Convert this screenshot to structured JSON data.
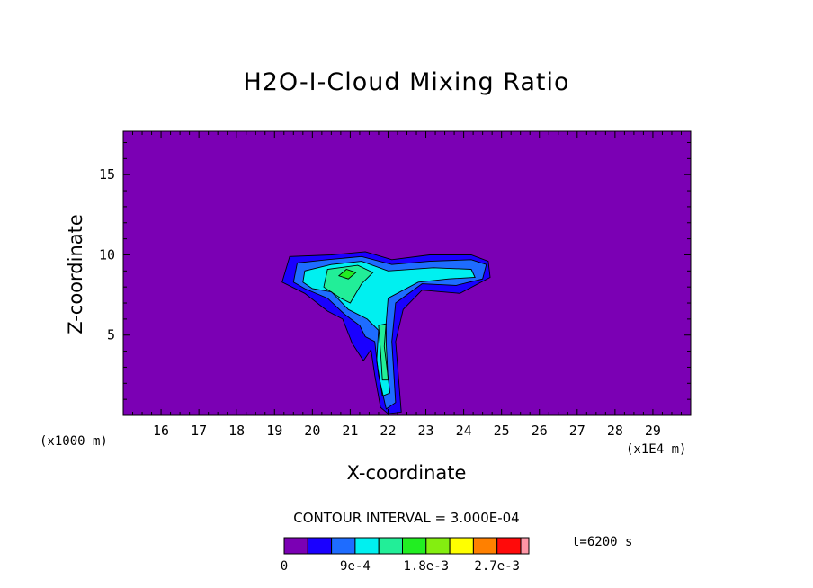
{
  "chart_data": {
    "type": "heatmap",
    "title": "H2O-I-Cloud Mixing Ratio",
    "xlabel": "X-coordinate",
    "ylabel": "Z-coordinate",
    "x_unit_note": "(x1000 m)",
    "x_scale_note": "(x1E4 m)",
    "xlim": [
      15.0,
      30.0
    ],
    "ylim": [
      0.0,
      17.7
    ],
    "x_ticks": [
      "16",
      "17",
      "18",
      "19",
      "20",
      "21",
      "22",
      "23",
      "24",
      "25",
      "26",
      "27",
      "28",
      "29"
    ],
    "y_ticks": [
      "5",
      "10",
      "15"
    ],
    "contour_interval_label": "CONTOUR INTERVAL = 3.000E-04",
    "time_label": "t=6200 s",
    "colorbar_labels": [
      "0",
      "9e-4",
      "1.8e-3",
      "2.7e-3"
    ],
    "levels": [
      0,
      0.0003,
      0.0006,
      0.0009,
      0.0012,
      0.0015,
      0.0018,
      0.0021,
      0.0024,
      0.0027,
      0.003
    ],
    "colors": [
      "#7b00b4",
      "#1a00ff",
      "#1e6cff",
      "#00f0f0",
      "#22ee98",
      "#22ee22",
      "#84ee10",
      "#ffff00",
      "#ff8000",
      "#ff0a0a",
      "#ff96a6"
    ],
    "regions": [
      {
        "level": 1,
        "points": [
          [
            19.2,
            8.3
          ],
          [
            19.4,
            9.9
          ],
          [
            20.5,
            10.0
          ],
          [
            21.4,
            10.2
          ],
          [
            22.1,
            9.7
          ],
          [
            23.1,
            10.0
          ],
          [
            24.2,
            10.0
          ],
          [
            24.65,
            9.6
          ],
          [
            24.7,
            8.6
          ],
          [
            23.9,
            7.6
          ],
          [
            22.9,
            7.8
          ],
          [
            22.4,
            6.6
          ],
          [
            22.2,
            4.6
          ],
          [
            22.35,
            0.2
          ],
          [
            22.0,
            0.1
          ],
          [
            21.8,
            0.5
          ],
          [
            21.65,
            2.5
          ],
          [
            21.55,
            4.1
          ],
          [
            21.35,
            3.4
          ],
          [
            21.05,
            4.5
          ],
          [
            20.8,
            6.0
          ],
          [
            20.4,
            6.5
          ],
          [
            19.8,
            7.6
          ]
        ]
      },
      {
        "level": 2,
        "points": [
          [
            19.5,
            8.3
          ],
          [
            19.6,
            9.5
          ],
          [
            20.4,
            9.7
          ],
          [
            21.3,
            9.9
          ],
          [
            22.1,
            9.4
          ],
          [
            23.1,
            9.6
          ],
          [
            24.2,
            9.7
          ],
          [
            24.6,
            9.4
          ],
          [
            24.5,
            8.5
          ],
          [
            23.8,
            8.1
          ],
          [
            22.9,
            8.2
          ],
          [
            22.2,
            7.0
          ],
          [
            22.1,
            4.6
          ],
          [
            22.2,
            0.8
          ],
          [
            21.95,
            0.4
          ],
          [
            21.75,
            2.5
          ],
          [
            21.65,
            4.6
          ],
          [
            21.4,
            4.9
          ],
          [
            21.25,
            5.6
          ],
          [
            20.85,
            6.3
          ],
          [
            20.4,
            7.3
          ],
          [
            19.8,
            7.9
          ]
        ]
      },
      {
        "level": 3,
        "points": [
          [
            19.75,
            8.3
          ],
          [
            19.8,
            9.0
          ],
          [
            20.5,
            9.4
          ],
          [
            21.3,
            9.6
          ],
          [
            22.0,
            9.0
          ],
          [
            23.2,
            9.2
          ],
          [
            24.2,
            9.1
          ],
          [
            24.3,
            8.6
          ],
          [
            23.6,
            8.5
          ],
          [
            22.8,
            8.3
          ],
          [
            22.0,
            7.3
          ],
          [
            21.9,
            4.3
          ],
          [
            22.05,
            1.4
          ],
          [
            21.85,
            1.2
          ],
          [
            21.7,
            3.4
          ],
          [
            21.75,
            5.3
          ],
          [
            21.45,
            6.0
          ],
          [
            20.95,
            6.6
          ],
          [
            20.5,
            7.7
          ],
          [
            20.0,
            7.9
          ]
        ]
      },
      {
        "level": 4,
        "points": [
          [
            20.3,
            8.0
          ],
          [
            20.4,
            9.1
          ],
          [
            21.2,
            9.35
          ],
          [
            21.6,
            8.9
          ],
          [
            21.3,
            8.2
          ],
          [
            21.0,
            7.0
          ],
          [
            20.75,
            7.3
          ]
        ]
      },
      {
        "level": 4,
        "points": [
          [
            21.75,
            5.6
          ],
          [
            21.8,
            4.0
          ],
          [
            21.85,
            2.2
          ],
          [
            22.0,
            2.2
          ],
          [
            21.95,
            4.5
          ],
          [
            21.95,
            5.7
          ]
        ]
      },
      {
        "level": 5,
        "points": [
          [
            20.7,
            8.7
          ],
          [
            20.9,
            9.1
          ],
          [
            21.15,
            8.9
          ],
          [
            20.95,
            8.5
          ]
        ]
      }
    ]
  }
}
